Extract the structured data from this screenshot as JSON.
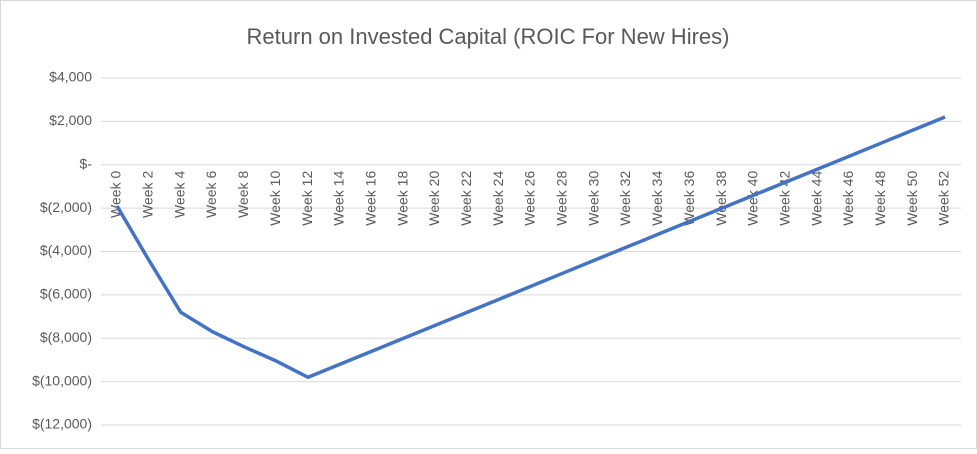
{
  "chart_data": {
    "type": "line",
    "title": "Return on Invested Capital (ROIC For New Hires)",
    "categories": [
      "Week 0",
      "Week 2",
      "Week 4",
      "Week 6",
      "Week 8",
      "Week 10",
      "Week 12",
      "Week 14",
      "Week 16",
      "Week 18",
      "Week 20",
      "Week 22",
      "Week 24",
      "Week 26",
      "Week 28",
      "Week 30",
      "Week 32",
      "Week 34",
      "Week 36",
      "Week 38",
      "Week 40",
      "Week 42",
      "Week 44",
      "Week 46",
      "Week 48",
      "Week 50",
      "Week 52"
    ],
    "values": [
      -1900,
      -4400,
      -6800,
      -7700,
      -8400,
      -9050,
      -9800,
      -9200,
      -8600,
      -8000,
      -7400,
      -6800,
      -6200,
      -5600,
      -5000,
      -4400,
      -3800,
      -3200,
      -2600,
      -2000,
      -1400,
      -800,
      -200,
      400,
      1000,
      1600,
      2200
    ],
    "color": "#4472c4",
    "ylim": [
      -12000,
      4000
    ],
    "yticks": [
      {
        "value": -12000,
        "label": "$(12,000)"
      },
      {
        "value": -10000,
        "label": "$(10,000)"
      },
      {
        "value": -8000,
        "label": "$(8,000)"
      },
      {
        "value": -6000,
        "label": "$(6,000)"
      },
      {
        "value": -4000,
        "label": "$(4,000)"
      },
      {
        "value": -2000,
        "label": "$(2,000)"
      },
      {
        "value": 0,
        "label": "$-"
      },
      {
        "value": 2000,
        "label": "$2,000"
      },
      {
        "value": 4000,
        "label": "$4,000"
      }
    ],
    "grid": true
  }
}
